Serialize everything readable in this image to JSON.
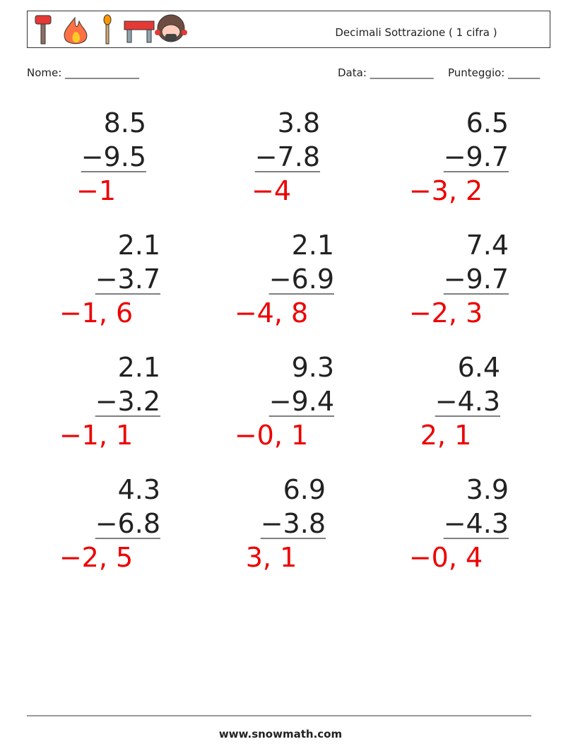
{
  "header": {
    "title": "Decimali Sottrazione ( 1 cifra )"
  },
  "fields": {
    "name": "Nome: ______________",
    "date": "Data: ____________",
    "score": "Punteggio: ______"
  },
  "problems": [
    {
      "top": "8.5",
      "bottom": "−9.5",
      "answer": "−1"
    },
    {
      "top": "3.8",
      "bottom": "−7.8",
      "answer": "−4"
    },
    {
      "top": "6.5",
      "bottom": "−9.7",
      "answer": "−3, 2"
    },
    {
      "top": "2.1",
      "bottom": "−3.7",
      "answer": "−1, 6"
    },
    {
      "top": "2.1",
      "bottom": "−6.9",
      "answer": "−4, 8"
    },
    {
      "top": "7.4",
      "bottom": "−9.7",
      "answer": "−2, 3"
    },
    {
      "top": "2.1",
      "bottom": "−3.2",
      "answer": "−1, 1"
    },
    {
      "top": "9.3",
      "bottom": "−9.4",
      "answer": "−0, 1"
    },
    {
      "top": "6.4",
      "bottom": "−4.3",
      "answer": "2, 1"
    },
    {
      "top": "4.3",
      "bottom": "−6.8",
      "answer": "−2, 5"
    },
    {
      "top": "6.9",
      "bottom": "−3.8",
      "answer": "3, 1"
    },
    {
      "top": "3.9",
      "bottom": "−4.3",
      "answer": "−0, 4"
    }
  ],
  "footer": {
    "url": "www.snowmath.com"
  }
}
